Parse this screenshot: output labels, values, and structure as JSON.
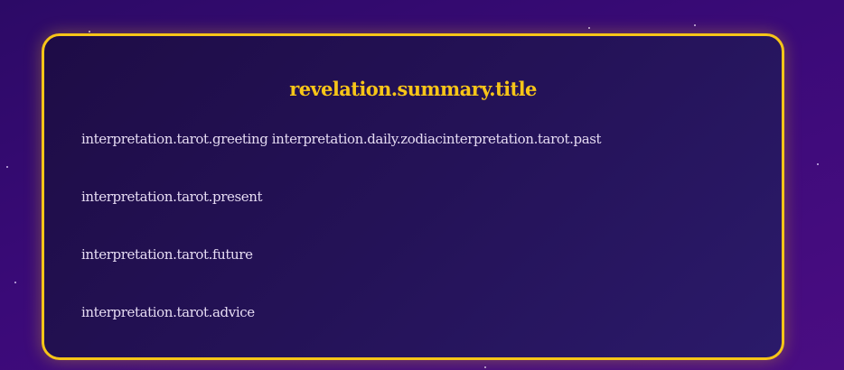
{
  "colors": {
    "background": "#3a0a78",
    "card_border": "#f7c518",
    "title": "#f7c518",
    "text": "#e6dcf3"
  },
  "summary": {
    "title": "revelation.summary.title",
    "lines": [
      "interpretation.tarot.greeting interpretation.daily.zodiacinterpretation.tarot.past",
      "interpretation.tarot.present",
      "interpretation.tarot.future",
      "interpretation.tarot.advice"
    ]
  }
}
